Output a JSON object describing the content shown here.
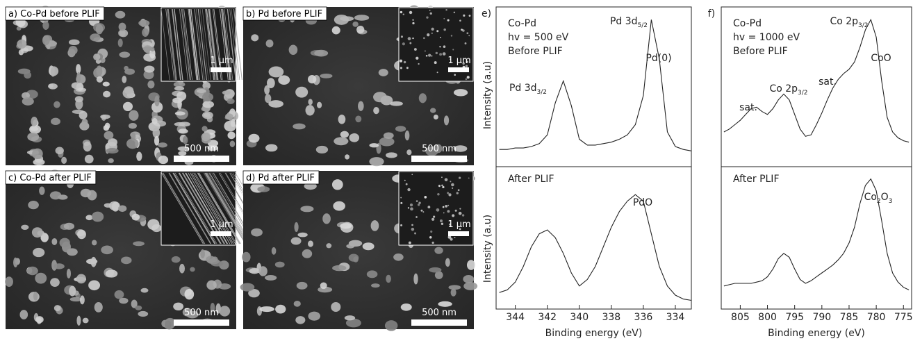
{
  "panels": [
    {
      "label": "a) Co-Pd before PLIF",
      "scale_bar": "500 nm",
      "inset_scale_bar": "1 µm"
    },
    {
      "label": "b) Pd before PLIF",
      "scale_bar": "500 nm",
      "inset_scale_bar": "1 µm"
    },
    {
      "label": "c) Co-Pd after PLIF",
      "scale_bar": "500 nm",
      "inset_scale_bar": "1 µm"
    },
    {
      "label": "d) Pd after PLIF",
      "scale_bar": "500 nm",
      "inset_scale_bar": "1 µm"
    }
  ],
  "chart_data": [
    {
      "type": "line",
      "panel": "e)",
      "xlabel": "Binding energy (eV)",
      "ylabel": "Intensity (a.u)",
      "header": [
        "Co-Pd",
        "hv = 500 eV"
      ],
      "xlim": [
        345.2,
        333
      ],
      "xticks": [
        344,
        342,
        340,
        338,
        336,
        334
      ],
      "x": [
        345,
        344.5,
        344,
        343.5,
        343,
        342.5,
        342,
        341.5,
        341,
        340.5,
        340,
        339.5,
        339,
        338.5,
        338,
        337.5,
        337,
        336.5,
        336,
        335.5,
        335,
        334.5,
        334,
        333.5,
        333
      ],
      "series": [
        {
          "name": "Before PLIF",
          "color": "#222222",
          "ylim": [
            0,
            100
          ],
          "values": [
            8,
            8,
            9,
            9,
            10,
            12,
            18,
            40,
            55,
            38,
            15,
            11,
            11,
            12,
            13,
            15,
            18,
            25,
            45,
            97,
            70,
            20,
            10,
            8,
            7
          ],
          "annotations": [
            [
              "Pd 3d",
              {
                "sub": "5/2"
              }
            ],
            [
              "Pd(0)"
            ],
            [
              "Pd 3d",
              {
                "sub": "3/2"
              }
            ]
          ]
        },
        {
          "name": "After PLIF",
          "color": "#222222",
          "ylim": [
            0,
            100
          ],
          "values": [
            10,
            12,
            18,
            30,
            45,
            55,
            58,
            52,
            40,
            25,
            15,
            20,
            30,
            45,
            60,
            72,
            80,
            85,
            80,
            55,
            30,
            15,
            8,
            5,
            4
          ],
          "annotations": [
            [
              "PdO"
            ]
          ]
        }
      ]
    },
    {
      "type": "line",
      "panel": "f)",
      "xlabel": "Binding energy (eV)",
      "header": [
        "Co-Pd",
        "hv = 1000 eV"
      ],
      "xlim": [
        808.5,
        773.5
      ],
      "xticks": [
        805,
        800,
        795,
        790,
        785,
        780,
        775
      ],
      "x": [
        808,
        807,
        806,
        805,
        804,
        803,
        802,
        801,
        800,
        799,
        798,
        797,
        796,
        795,
        794,
        793,
        792,
        791,
        790,
        789,
        788,
        787,
        786,
        785,
        784,
        783,
        782,
        781,
        780,
        779,
        778,
        777,
        776,
        775,
        774
      ],
      "series": [
        {
          "name": "Before PLIF",
          "color": "#222222",
          "ylim": [
            0,
            100
          ],
          "values": [
            20,
            22,
            25,
            28,
            32,
            36,
            37,
            34,
            32,
            36,
            42,
            46,
            42,
            32,
            22,
            17,
            18,
            25,
            33,
            42,
            50,
            56,
            60,
            63,
            68,
            78,
            90,
            97,
            85,
            55,
            30,
            20,
            16,
            14,
            13
          ],
          "annotations": [
            [
              "Co 2p",
              {
                "sub": "3/2"
              }
            ],
            [
              "CoO"
            ],
            [
              "sat."
            ],
            [
              "Co 2p",
              {
                "sub": "3/2"
              }
            ],
            [
              "sat."
            ]
          ]
        },
        {
          "name": "After PLIF",
          "color": "#222222",
          "ylim": [
            0,
            100
          ],
          "values": [
            15,
            16,
            17,
            17,
            17,
            17,
            18,
            19,
            22,
            28,
            36,
            40,
            37,
            28,
            20,
            17,
            19,
            22,
            25,
            28,
            31,
            35,
            40,
            48,
            60,
            78,
            92,
            97,
            88,
            65,
            40,
            25,
            18,
            14,
            12
          ],
          "annotations": [
            [
              "Co",
              {
                "sub": "2"
              },
              "O",
              {
                "sub": "3"
              }
            ]
          ]
        }
      ]
    }
  ]
}
